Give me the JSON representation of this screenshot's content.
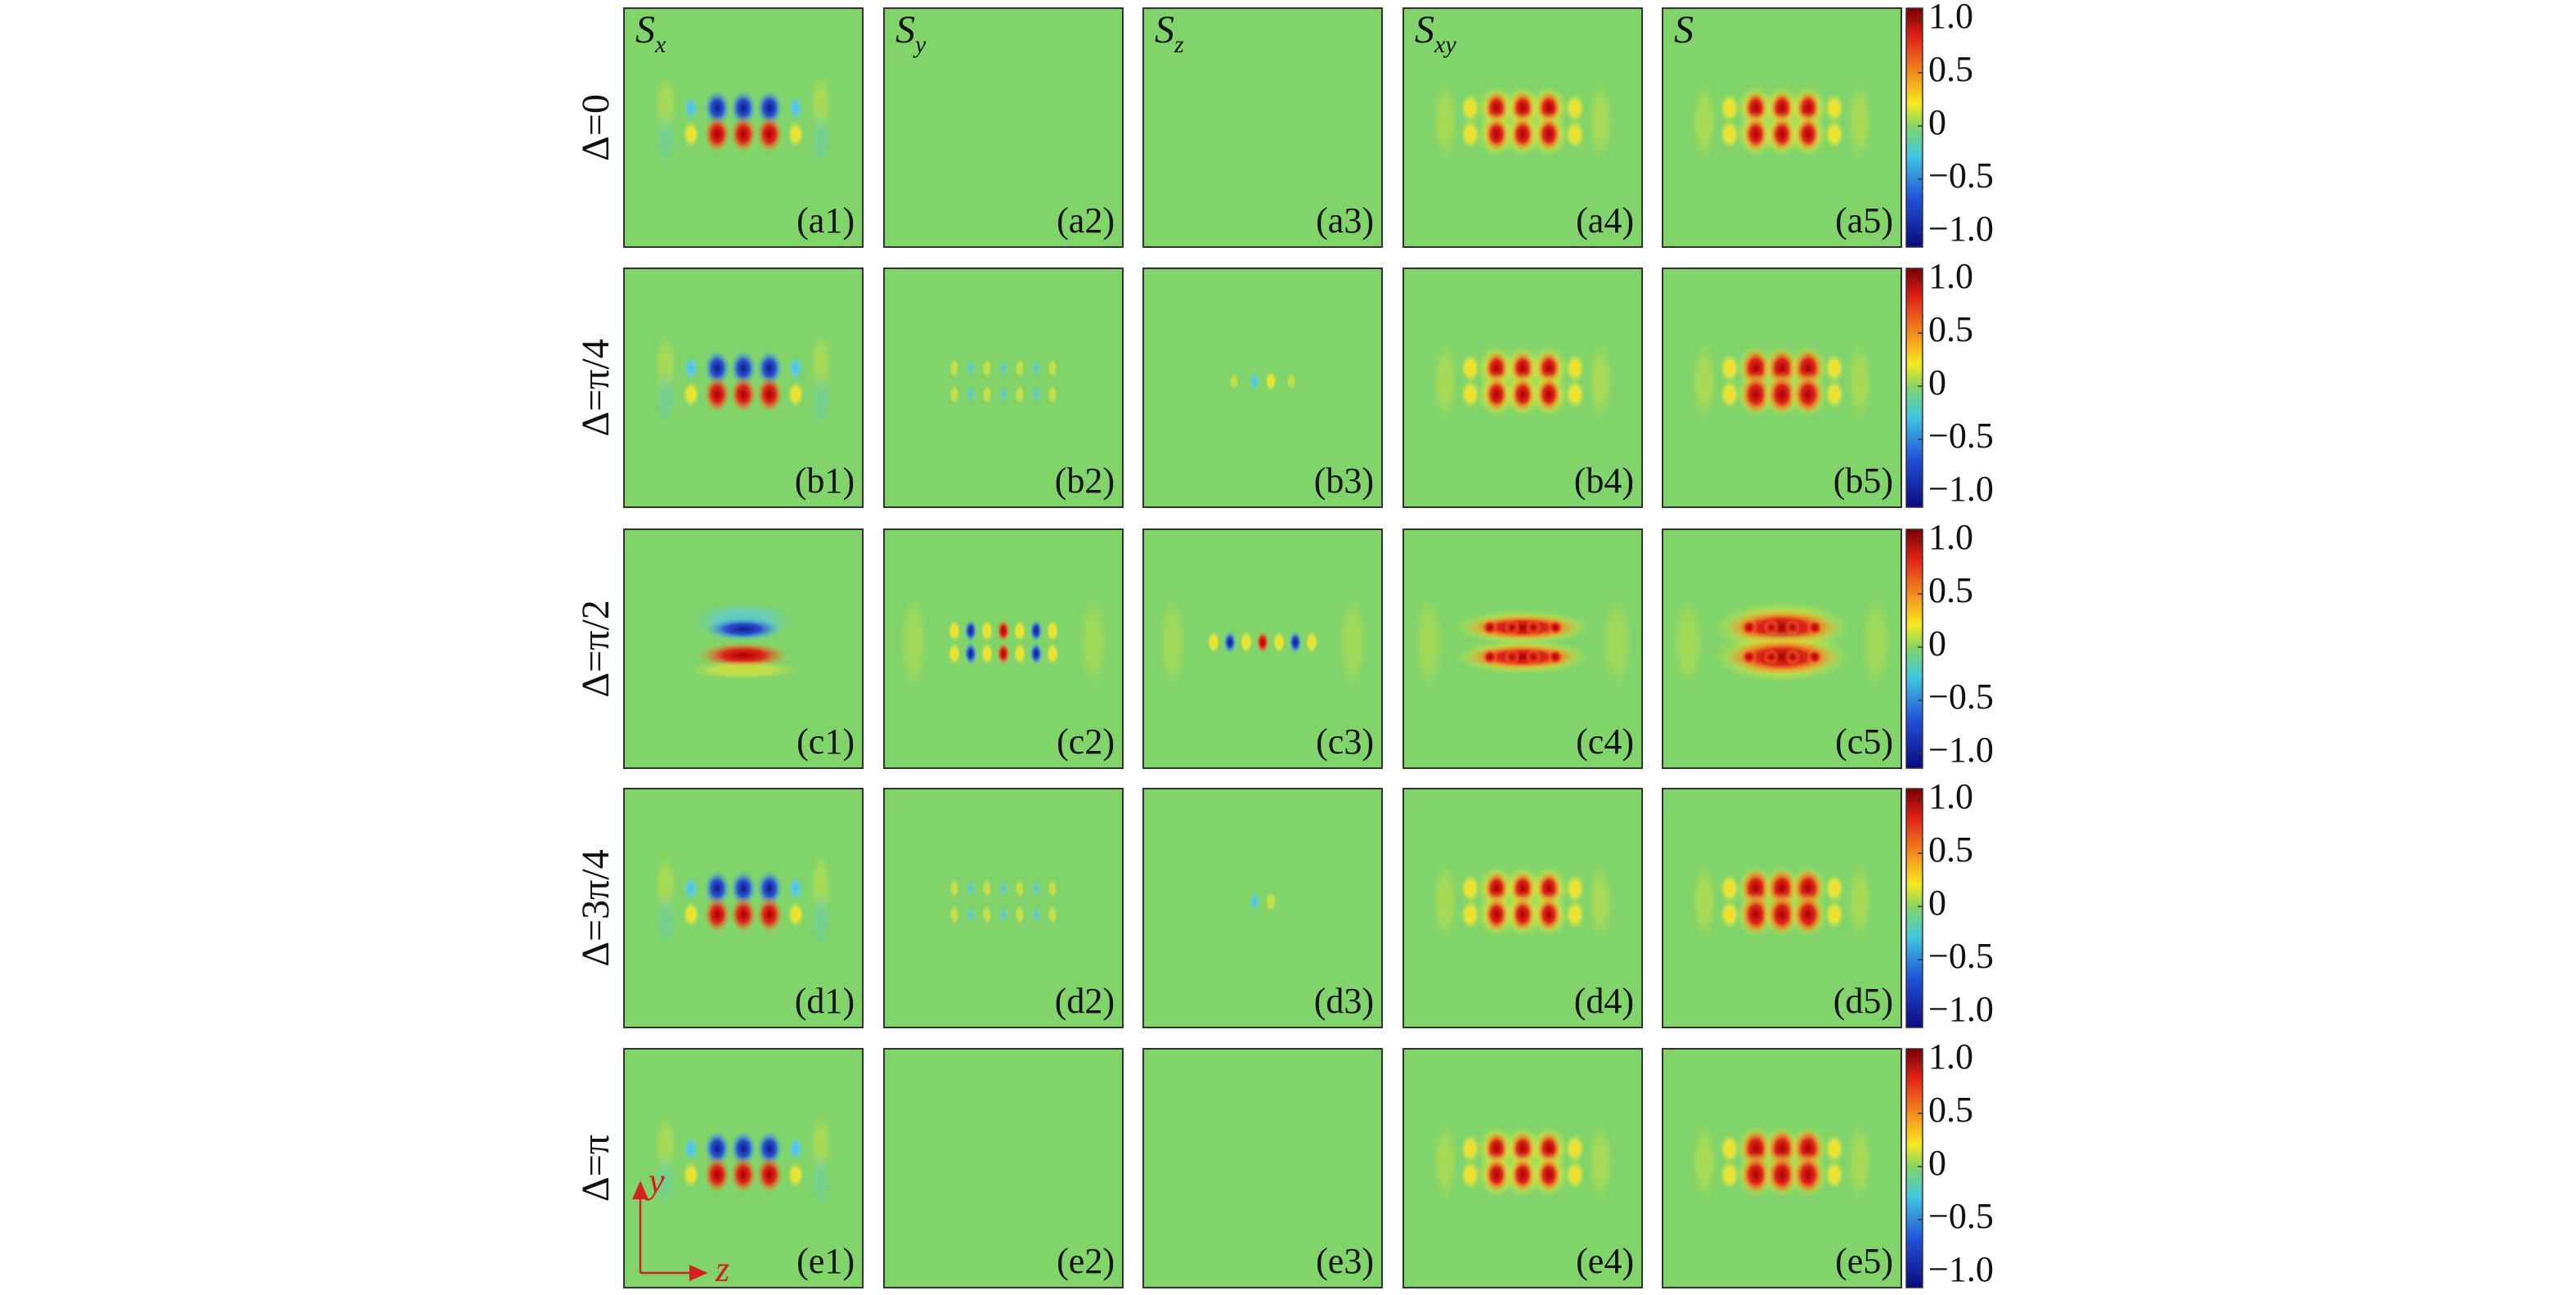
{
  "columns": [
    {
      "symbol": "S",
      "sub": "x"
    },
    {
      "symbol": "S",
      "sub": "y"
    },
    {
      "symbol": "S",
      "sub": "z"
    },
    {
      "symbol": "S",
      "sub": "xy"
    },
    {
      "symbol": "S"
    }
  ],
  "rows": [
    {
      "label": "Δ=0",
      "panels": [
        "(a1)",
        "(a2)",
        "(a3)",
        "(a4)",
        "(a5)"
      ]
    },
    {
      "label": "Δ=π/4",
      "panels": [
        "(b1)",
        "(b2)",
        "(b3)",
        "(b4)",
        "(b5)"
      ]
    },
    {
      "label": "Δ=π/2",
      "panels": [
        "(c1)",
        "(c2)",
        "(c3)",
        "(c4)",
        "(c5)"
      ]
    },
    {
      "label": "Δ=3π/4",
      "panels": [
        "(d1)",
        "(d2)",
        "(d3)",
        "(d4)",
        "(d5)"
      ]
    },
    {
      "label": "Δ=π",
      "panels": [
        "(e1)",
        "(e2)",
        "(e3)",
        "(e4)",
        "(e5)"
      ]
    }
  ],
  "colorbar": {
    "ticks": [
      "1.0",
      "0.5",
      "0",
      "−0.5",
      "−1.0"
    ]
  },
  "axes": {
    "vertical": "y",
    "horizontal": "z"
  }
}
